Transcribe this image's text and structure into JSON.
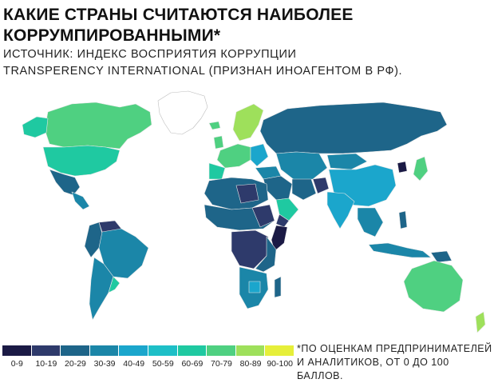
{
  "header": {
    "title_line1": "КАКИЕ СТРАНЫ СЧИТАЮТСЯ НАИБОЛЕЕ",
    "title_line2": "КОРРУМПИРОВАННЫМИ*",
    "source_line1": "ИСТОЧНИК: ИНДЕКС ВОСПРИЯТИЯ КОРРУПЦИИ",
    "source_line2": "TRANSPERENCY INTERNATIONAL (ПРИЗНАН ИНОАГЕНТОМ В РФ)."
  },
  "legend": {
    "items": [
      {
        "label": "0-9",
        "color": "#1b1a45"
      },
      {
        "label": "10-19",
        "color": "#2e3a6b"
      },
      {
        "label": "20-29",
        "color": "#1e6589"
      },
      {
        "label": "30-39",
        "color": "#1b86a8"
      },
      {
        "label": "40-49",
        "color": "#1ba6cc"
      },
      {
        "label": "50-59",
        "color": "#1ebfc7"
      },
      {
        "label": "60-69",
        "color": "#1fc9a1"
      },
      {
        "label": "70-79",
        "color": "#4fd081"
      },
      {
        "label": "80-89",
        "color": "#9ee05b"
      },
      {
        "label": "90-100",
        "color": "#e6ef3a"
      }
    ]
  },
  "footnote": {
    "line1": "*ПО ОЦЕНКАМ ПРЕДПРИНИМАТЕЛЕЙ",
    "line2": "И АНАЛИТИКОВ, ОТ 0 ДО 100 БАЛЛОВ."
  },
  "map": {
    "no_data_color": "#ffffff",
    "border_color": "#d9d9d9"
  }
}
